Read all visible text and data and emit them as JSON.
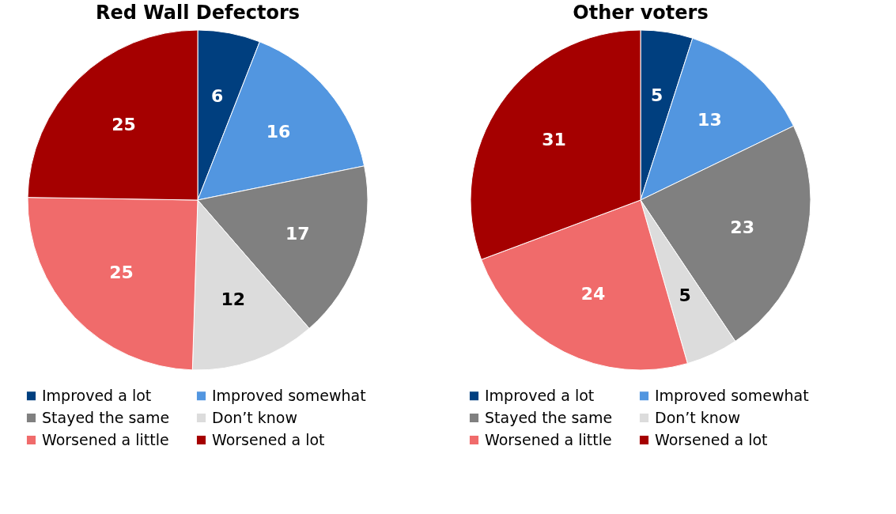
{
  "chart_data": [
    {
      "type": "pie",
      "title": "Red Wall Defectors",
      "categories": [
        "Improved a lot",
        "Improved somewhat",
        "Stayed the same",
        "Don’t know",
        "Worsened a little",
        "Worsened a lot"
      ],
      "values": [
        6,
        16,
        17,
        12,
        25,
        25
      ],
      "colors": [
        "#003f7f",
        "#5296e0",
        "#808080",
        "#dcdcdc",
        "#f06b6b",
        "#a50000"
      ],
      "data_labels": true,
      "legend": "bottom"
    },
    {
      "type": "pie",
      "title": "Other voters",
      "categories": [
        "Improved a lot",
        "Improved somewhat",
        "Stayed the same",
        "Don’t know",
        "Worsened a little",
        "Worsened a lot"
      ],
      "values": [
        5,
        13,
        23,
        5,
        24,
        31
      ],
      "colors": [
        "#003f7f",
        "#5296e0",
        "#808080",
        "#dcdcdc",
        "#f06b6b",
        "#a50000"
      ],
      "data_labels": true,
      "legend": "bottom"
    }
  ]
}
